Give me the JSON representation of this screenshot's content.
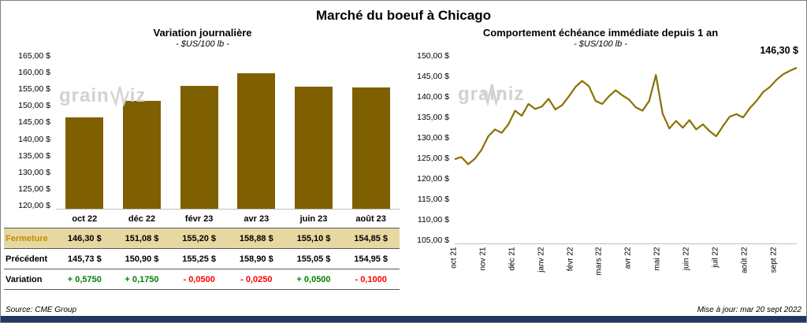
{
  "page": {
    "title": "Marché du boeuf à Chicago",
    "source": "Source: CME Group",
    "updated": "Mise à jour: mar 20 sept 2022",
    "watermark_pre": "grain",
    "watermark_post": "iz"
  },
  "colors": {
    "bar": "#7F6000",
    "line": "#8A7000",
    "fermeture_bg": "#E7D8A1",
    "fermeture_label": "#BF9000",
    "positive": "#008000",
    "negative": "#FF0000",
    "footer_bar": "#1F3864"
  },
  "chart_data": [
    {
      "type": "bar",
      "title": "Variation  journalière",
      "subtitle": "- $US/100 lb -",
      "categories": [
        "oct 22",
        "déc 22",
        "févr 23",
        "avr 23",
        "juin 23",
        "août 23"
      ],
      "values": [
        146.3,
        151.08,
        155.2,
        158.88,
        155.1,
        154.85
      ],
      "ylim": [
        120,
        165
      ],
      "ytick_step": 5,
      "ytick_labels": [
        "165,00 $",
        "160,00 $",
        "155,00 $",
        "150,00 $",
        "145,00 $",
        "140,00 $",
        "135,00 $",
        "130,00 $",
        "125,00 $",
        "120,00 $"
      ],
      "grid": false,
      "table": {
        "rows": [
          {
            "label": "Fermeture",
            "values": [
              "146,30 $",
              "151,08 $",
              "155,20 $",
              "158,88 $",
              "155,10 $",
              "154,85 $"
            ]
          },
          {
            "label": "Précédent",
            "values": [
              "145,73 $",
              "150,90 $",
              "155,25 $",
              "158,90 $",
              "155,05 $",
              "154,95 $"
            ]
          },
          {
            "label": "Variation",
            "values": [
              "+ 0,5750",
              "+ 0,1750",
              "- 0,0500",
              "- 0,0250",
              "+ 0,0500",
              "- 0,1000"
            ],
            "signs": [
              "pos",
              "pos",
              "neg",
              "neg",
              "pos",
              "neg"
            ]
          }
        ]
      }
    },
    {
      "type": "line",
      "title": "Comportement  échéance immédiate depuis 1 an",
      "subtitle": "- $US/100 lb -",
      "x_labels": [
        "oct 21",
        "nov 21",
        "déc 21",
        "janv 22",
        "févr 22",
        "mars 22",
        "avr 22",
        "mai 22",
        "juin 22",
        "juil 22",
        "août 22",
        "sept 22"
      ],
      "values": [
        124.8,
        125.3,
        123.6,
        124.9,
        127.0,
        130.2,
        131.8,
        131.0,
        133.0,
        136.2,
        135.0,
        137.8,
        136.6,
        137.2,
        139.0,
        136.5,
        137.5,
        139.5,
        141.8,
        143.2,
        142.0,
        138.5,
        137.8,
        139.6,
        141.0,
        139.8,
        138.8,
        137.0,
        136.2,
        138.5,
        144.6,
        135.5,
        132.0,
        133.8,
        132.2,
        134.0,
        131.8,
        133.0,
        131.4,
        130.2,
        132.6,
        134.8,
        135.4,
        134.6,
        136.8,
        138.5,
        140.6,
        141.8,
        143.5,
        144.8,
        145.6,
        146.3
      ],
      "ylim": [
        105,
        150
      ],
      "ytick_step": 5,
      "ytick_labels": [
        "150,00 $",
        "145,00 $",
        "140,00 $",
        "135,00 $",
        "130,00 $",
        "125,00 $",
        "120,00 $",
        "115,00 $",
        "110,00 $",
        "105,00 $"
      ],
      "grid": false,
      "legend": "none",
      "annotation": "146,30 $"
    }
  ]
}
